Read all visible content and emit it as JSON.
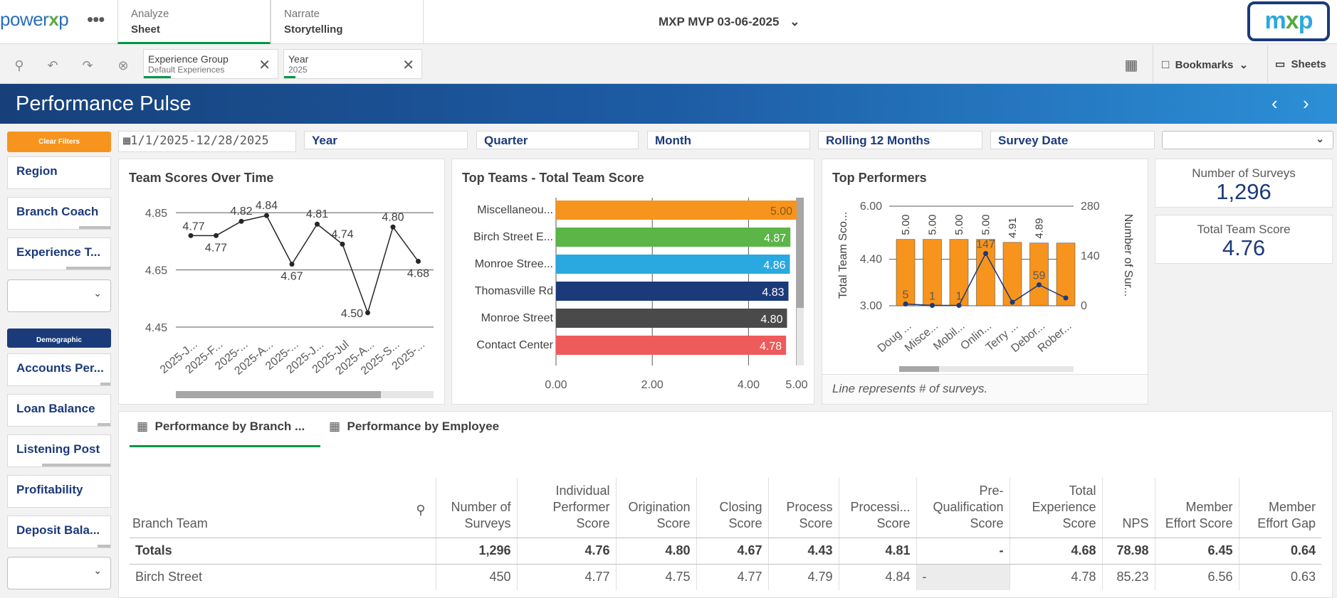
{
  "app": {
    "logo_text_left": "power",
    "logo_text_x": "x",
    "logo_text_right": "p",
    "menu_dots": "•••",
    "title": "MXP MVP 03-06-2025"
  },
  "nav_tabs": [
    {
      "top": "Analyze",
      "bottom": "Sheet"
    },
    {
      "top": "Narrate",
      "bottom": "Storytelling"
    }
  ],
  "brand_logo": "mxp",
  "selections": [
    {
      "field": "Experience Group",
      "value": "Default Experiences"
    },
    {
      "field": "Year",
      "value": "2025"
    }
  ],
  "toolbar": {
    "bookmarks": "Bookmarks",
    "sheets": "Sheets"
  },
  "sheet_title": "Performance Pulse",
  "sidebar": {
    "clear_filters": "Clear Filters",
    "filters_top": [
      "Region",
      "Branch Coach",
      "Experience T..."
    ],
    "demographic": "Demographic",
    "filters_bottom": [
      "Accounts Per...",
      "Loan Balance",
      "Listening Post",
      "Profitability",
      "Deposit Bala..."
    ]
  },
  "filter_row": {
    "date_range": "1/1/2025-12/28/2025",
    "filters": [
      "Year",
      "Quarter",
      "Month",
      "Rolling 12 Months",
      "Survey Date"
    ]
  },
  "colors": {
    "brand_blue": "#1b3a7a",
    "orange": "#f7941d",
    "green": "#5bb547",
    "teal": "#2aa8e0",
    "navy": "#1b3a7a",
    "gray": "#4a4a4a",
    "red": "#ef5a5a"
  },
  "chart_data": [
    {
      "type": "line",
      "title": "Team Scores Over Time",
      "x": [
        "2025-J...",
        "2025-F...",
        "2025-...",
        "2025-A...",
        "2025-...",
        "2025-J...",
        "2025-Jul",
        "2025-A...",
        "2025-S...",
        "2025-..."
      ],
      "series": [
        {
          "values": [
            4.77,
            4.77,
            4.82,
            4.84,
            4.67,
            4.81,
            4.74,
            4.5,
            4.8,
            4.68
          ]
        }
      ],
      "ylim": [
        4.45,
        4.92
      ],
      "yticks": [
        "4.85",
        "4.65",
        "4.45"
      ],
      "grid": true
    },
    {
      "type": "bar",
      "orientation": "horizontal",
      "title": "Top Teams - Total Team Score",
      "categories": [
        "Miscellaneou...",
        "Birch Street E...",
        "Monroe Stree...",
        "Thomasville Rd",
        "Monroe Street",
        "Contact Center"
      ],
      "values": [
        5.0,
        4.87,
        4.86,
        4.83,
        4.8,
        4.78
      ],
      "value_labels": [
        "5.00",
        "4.87",
        "4.86",
        "4.83",
        "4.80",
        "4.78"
      ],
      "xticks": [
        "0.00",
        "2.00",
        "4.00",
        "5.00"
      ],
      "xlim": [
        0,
        5.0
      ]
    },
    {
      "type": "bar",
      "title": "Top Performers",
      "categories": [
        "Doug ...",
        "Misce...",
        "Mobil...",
        "Onlin...",
        "Terry ...",
        "Debor...",
        "Rober..."
      ],
      "series": [
        {
          "name": "Total Team Score",
          "values": [
            5.0,
            5.0,
            5.0,
            5.0,
            4.91,
            4.89,
            4.89
          ],
          "labels": [
            "5.00",
            "5.00",
            "5.00",
            "5.00",
            "4.91",
            "4.89",
            ""
          ]
        },
        {
          "name": "Number of Surveys",
          "values": [
            5,
            1,
            1,
            147,
            10,
            59,
            22
          ],
          "labels": [
            "5",
            "1",
            "1",
            "147",
            "",
            "59",
            ""
          ]
        }
      ],
      "ylabel": "Total Team Sco...",
      "y2label": "Number of Sur...",
      "yticks": [
        "6.00",
        "4.40",
        "3.00"
      ],
      "y2ticks": [
        "280",
        "140",
        "0"
      ],
      "ylim": [
        3.0,
        6.0
      ],
      "y2lim": [
        0,
        280
      ],
      "footnote": "Line represents # of surveys."
    }
  ],
  "kpis": [
    {
      "label": "Number of Surveys",
      "value": "1,296"
    },
    {
      "label": "Total Team Score",
      "value": "4.76"
    }
  ],
  "table_tabs": [
    "Performance by Branch ...",
    "Performance by Employee"
  ],
  "table": {
    "columns": [
      "Branch Team",
      "Number of Surveys",
      "Individual Performer Score",
      "Origination Score",
      "Closing Score",
      "Process Score",
      "Processi... Score",
      "Pre-Qualification Score",
      "Total Experience Score",
      "NPS",
      "Member Effort Score",
      "Member Effort Gap"
    ],
    "totals": [
      "Totals",
      "1,296",
      "4.76",
      "4.80",
      "4.67",
      "4.43",
      "4.81",
      "-",
      "4.68",
      "78.98",
      "6.45",
      "0.64"
    ],
    "rows": [
      [
        "Birch Street",
        "450",
        "4.77",
        "4.75",
        "4.77",
        "4.79",
        "4.84",
        "-",
        "4.78",
        "85.23",
        "6.56",
        "0.63"
      ]
    ]
  }
}
